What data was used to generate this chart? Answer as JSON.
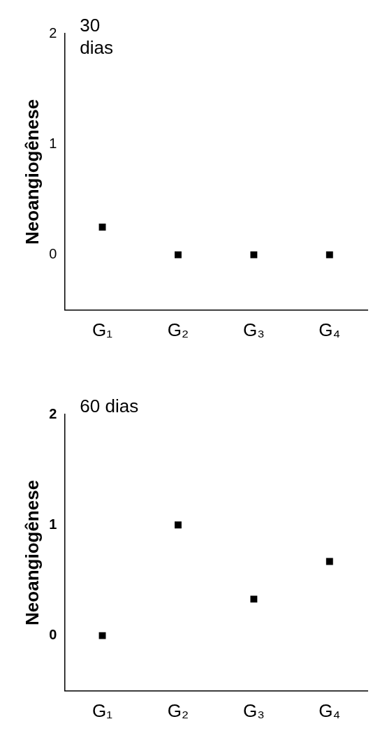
{
  "chart_data": [
    {
      "type": "scatter",
      "title": "30 dias",
      "ylabel": "Neoangiogênese",
      "categories": [
        "G₁",
        "G₂",
        "G₃",
        "G₄"
      ],
      "values": [
        0.25,
        0,
        0,
        0
      ],
      "color": "#000000",
      "ylim": [
        -0.5,
        2
      ],
      "yticks": [
        0,
        1,
        2
      ],
      "grid": false,
      "marker": "square"
    },
    {
      "type": "scatter",
      "title": "60 dias",
      "ylabel": "Neoangiogênese",
      "categories": [
        "G₁",
        "G₂",
        "G₃",
        "G₄"
      ],
      "values": [
        0,
        1,
        0.33,
        0.67
      ],
      "color": "#000000",
      "ylim": [
        -0.5,
        2
      ],
      "yticks": [
        0,
        1,
        2
      ],
      "grid": false,
      "marker": "square"
    }
  ]
}
